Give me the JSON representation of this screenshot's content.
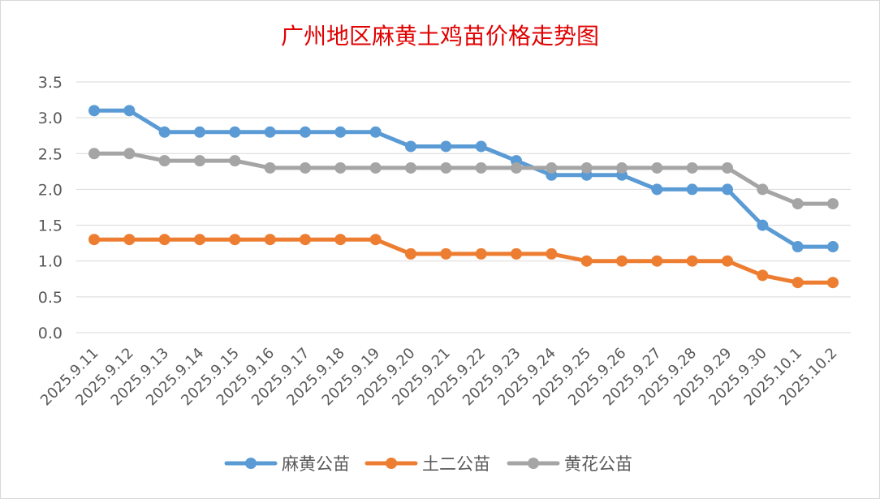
{
  "chart_data": {
    "type": "line",
    "title": "广州地区麻黄土鸡苗价格走势图",
    "xlabel": "",
    "ylabel": "",
    "ylim": [
      0,
      3.5
    ],
    "yticks": [
      "0.0",
      "0.5",
      "1.0",
      "1.5",
      "2.0",
      "2.5",
      "3.0",
      "3.5"
    ],
    "grid": true,
    "legend_position": "bottom",
    "categories": [
      "2025.9.11",
      "2025.9.12",
      "2025.9.13",
      "2025.9.14",
      "2025.9.15",
      "2025.9.16",
      "2025.9.17",
      "2025.9.18",
      "2025.9.19",
      "2025.9.20",
      "2025.9.21",
      "2025.9.22",
      "2025.9.23",
      "2025.9.24",
      "2025.9.25",
      "2025.9.26",
      "2025.9.27",
      "2025.9.28",
      "2025.9.29",
      "2025.9.30",
      "2025.10.1",
      "2025.10.2"
    ],
    "series": [
      {
        "name": "麻黄公苗",
        "color": "#5b9bd5",
        "values": [
          3.1,
          3.1,
          2.8,
          2.8,
          2.8,
          2.8,
          2.8,
          2.8,
          2.8,
          2.6,
          2.6,
          2.6,
          2.4,
          2.2,
          2.2,
          2.2,
          2.0,
          2.0,
          2.0,
          1.5,
          1.2,
          1.2
        ]
      },
      {
        "name": "土二公苗",
        "color": "#ed7d31",
        "values": [
          1.3,
          1.3,
          1.3,
          1.3,
          1.3,
          1.3,
          1.3,
          1.3,
          1.3,
          1.1,
          1.1,
          1.1,
          1.1,
          1.1,
          1.0,
          1.0,
          1.0,
          1.0,
          1.0,
          0.8,
          0.7,
          0.7
        ]
      },
      {
        "name": "黄花公苗",
        "color": "#a5a5a5",
        "values": [
          2.5,
          2.5,
          2.4,
          2.4,
          2.4,
          2.3,
          2.3,
          2.3,
          2.3,
          2.3,
          2.3,
          2.3,
          2.3,
          2.3,
          2.3,
          2.3,
          2.3,
          2.3,
          2.3,
          2.0,
          1.8,
          1.8
        ]
      }
    ]
  }
}
